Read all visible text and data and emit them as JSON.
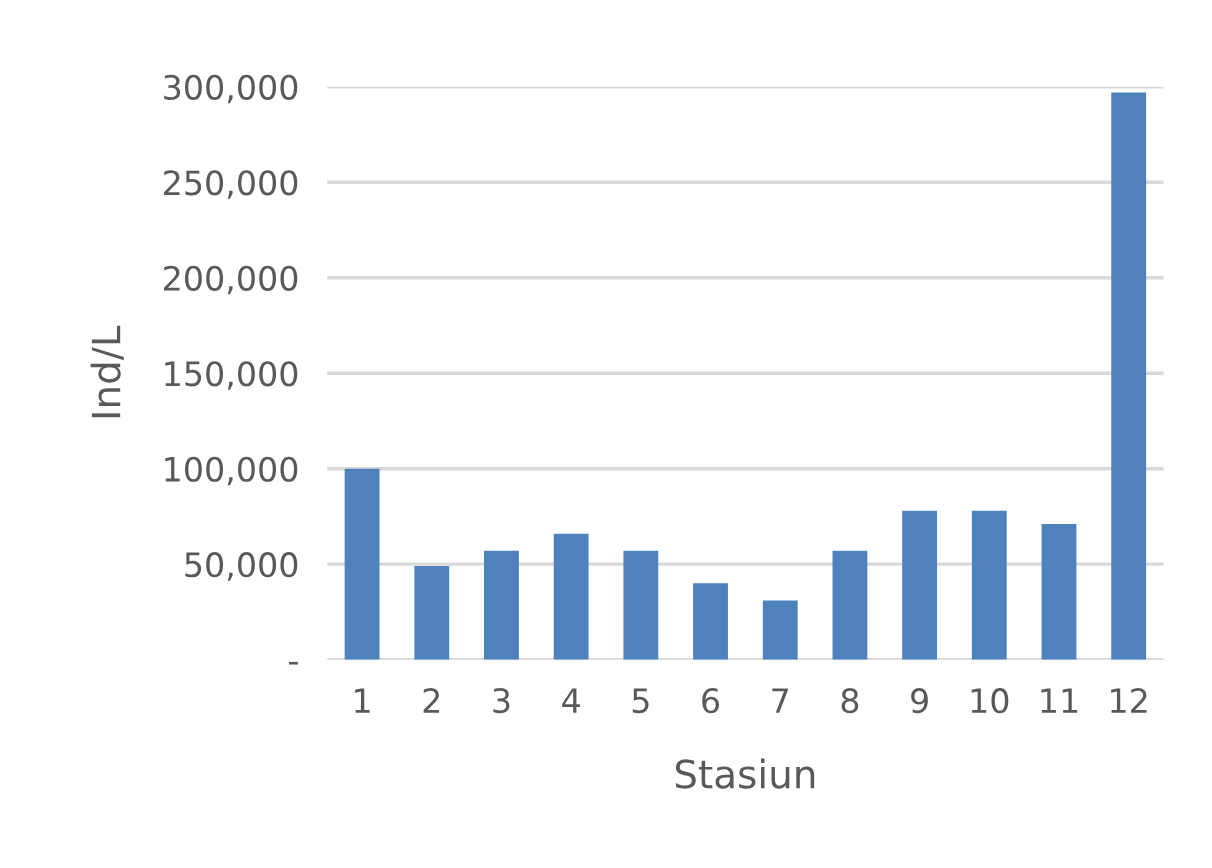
{
  "chart_data": {
    "type": "bar",
    "xlabel": "Stasiun",
    "ylabel": "Ind/L",
    "categories": [
      "1",
      "2",
      "3",
      "4",
      "5",
      "6",
      "7",
      "8",
      "9",
      "10",
      "11",
      "12"
    ],
    "values": [
      100000,
      49000,
      57000,
      66000,
      57000,
      40000,
      31000,
      57000,
      78000,
      78000,
      71000,
      297000
    ],
    "color": "#4f81bd",
    "ylim": [
      0,
      300000
    ],
    "yticks": [
      {
        "value": 0,
        "label": "-"
      },
      {
        "value": 50000,
        "label": "50,000"
      },
      {
        "value": 100000,
        "label": "100,000"
      },
      {
        "value": 150000,
        "label": "150,000"
      },
      {
        "value": 200000,
        "label": "200,000"
      },
      {
        "value": 250000,
        "label": "250,000"
      },
      {
        "value": 300000,
        "label": "300,000"
      }
    ],
    "grid": "y"
  }
}
